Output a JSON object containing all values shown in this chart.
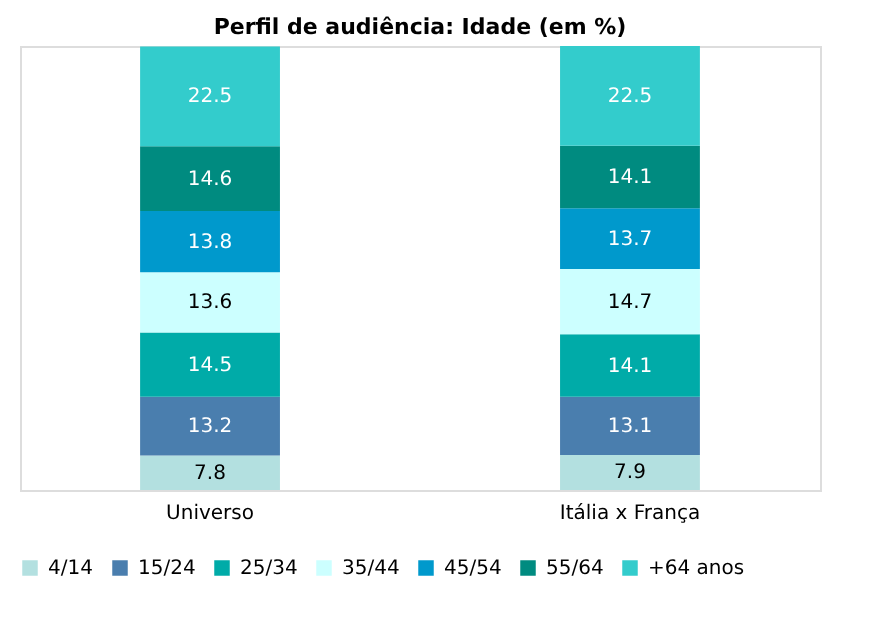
{
  "chart_data": {
    "type": "bar",
    "title": "Perfil de audiência: Idade (em %)",
    "stacked": true,
    "data_labels": true,
    "legend": "bottom",
    "categories": [
      "Universo",
      "Itália x França"
    ],
    "series": [
      {
        "name": "4/14",
        "color": "#b3e0e0",
        "values": [
          7.8,
          7.9
        ]
      },
      {
        "name": "15/24",
        "color": "#4a7eae",
        "values": [
          13.2,
          13.1
        ]
      },
      {
        "name": "25/34",
        "color": "#00aba8",
        "values": [
          14.5,
          14.1
        ]
      },
      {
        "name": "35/44",
        "color": "#ccffff",
        "values": [
          13.6,
          14.7
        ]
      },
      {
        "name": "45/54",
        "color": "#0099cc",
        "values": [
          13.8,
          13.7
        ]
      },
      {
        "name": "55/64",
        "color": "#008b80",
        "values": [
          14.6,
          14.1
        ]
      },
      {
        "name": "+64 anos",
        "color": "#33cccc",
        "values": [
          22.5,
          22.5
        ]
      }
    ]
  }
}
